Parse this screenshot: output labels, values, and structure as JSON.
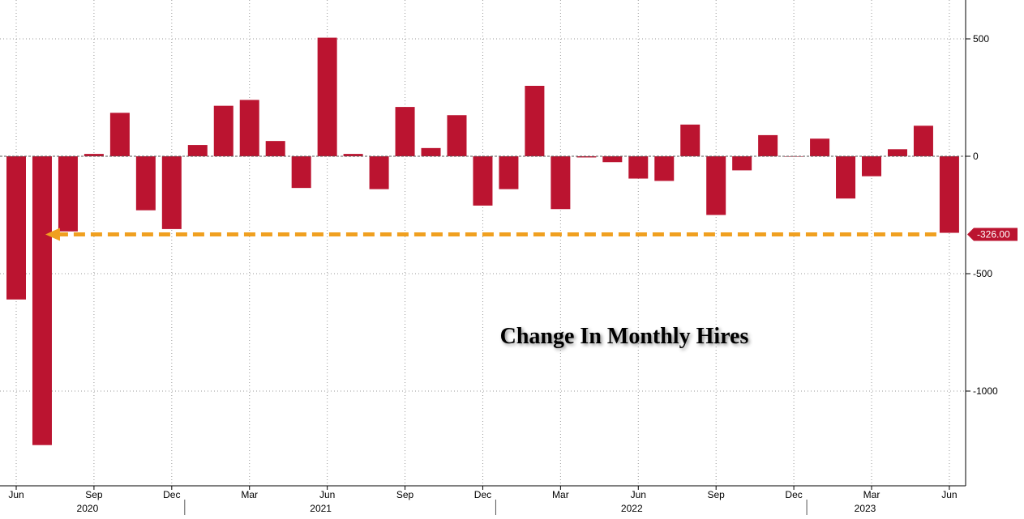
{
  "colors": {
    "bar": "#bb1430",
    "arrow": "#f0a020",
    "grid": "#9a9a9a",
    "axis": "#000000",
    "last_value_badge": "#bb1430"
  },
  "chart_data": {
    "type": "bar",
    "title": "Change In Monthly Hires",
    "xlabel": "",
    "ylabel": "",
    "ylim": [
      -1400,
      660
    ],
    "y_ticks": [
      500,
      0,
      -500,
      -1000
    ],
    "y_tick_labels": [
      "500",
      "0",
      "-500",
      "-1000"
    ],
    "grid": true,
    "y_axis_position": "right",
    "categories": [
      "2020-06",
      "2020-07",
      "2020-08",
      "2020-09",
      "2020-10",
      "2020-11",
      "2020-12",
      "2021-01",
      "2021-02",
      "2021-03",
      "2021-04",
      "2021-05",
      "2021-06",
      "2021-07",
      "2021-08",
      "2021-09",
      "2021-10",
      "2021-11",
      "2021-12",
      "2022-01",
      "2022-02",
      "2022-03",
      "2022-04",
      "2022-05",
      "2022-06",
      "2022-07",
      "2022-08",
      "2022-09",
      "2022-10",
      "2022-11",
      "2022-12",
      "2023-01",
      "2023-02",
      "2023-03",
      "2023-04",
      "2023-05",
      "2023-06"
    ],
    "values": [
      -610,
      -1230,
      -320,
      10,
      185,
      -230,
      -310,
      48,
      215,
      240,
      65,
      -135,
      505,
      10,
      -140,
      210,
      35,
      175,
      -210,
      -140,
      300,
      -225,
      -5,
      -25,
      -95,
      -105,
      135,
      -250,
      -60,
      90,
      0,
      75,
      -180,
      -85,
      30,
      130,
      -326
    ],
    "x_tick_labels": [
      {
        "month": "2020-06",
        "label": "Jun"
      },
      {
        "month": "2020-09",
        "label": "Sep"
      },
      {
        "month": "2020-12",
        "label": "Dec"
      },
      {
        "month": "2021-03",
        "label": "Mar"
      },
      {
        "month": "2021-06",
        "label": "Jun"
      },
      {
        "month": "2021-09",
        "label": "Sep"
      },
      {
        "month": "2021-12",
        "label": "Dec"
      },
      {
        "month": "2022-03",
        "label": "Mar"
      },
      {
        "month": "2022-06",
        "label": "Jun"
      },
      {
        "month": "2022-09",
        "label": "Sep"
      },
      {
        "month": "2022-12",
        "label": "Dec"
      },
      {
        "month": "2023-03",
        "label": "Mar"
      },
      {
        "month": "2023-06",
        "label": "Jun"
      }
    ],
    "year_labels": [
      {
        "month": "2020-09",
        "label": "2020"
      },
      {
        "month": "2021-06",
        "label": "2021"
      },
      {
        "month": "2022-06",
        "label": "2022"
      },
      {
        "month": "2023-03",
        "label": "2023"
      }
    ],
    "last_value": {
      "value": -326,
      "label": "-326.00"
    },
    "reference_arrow": {
      "value": -326,
      "from": "2023-06",
      "to": "2020-07"
    }
  }
}
